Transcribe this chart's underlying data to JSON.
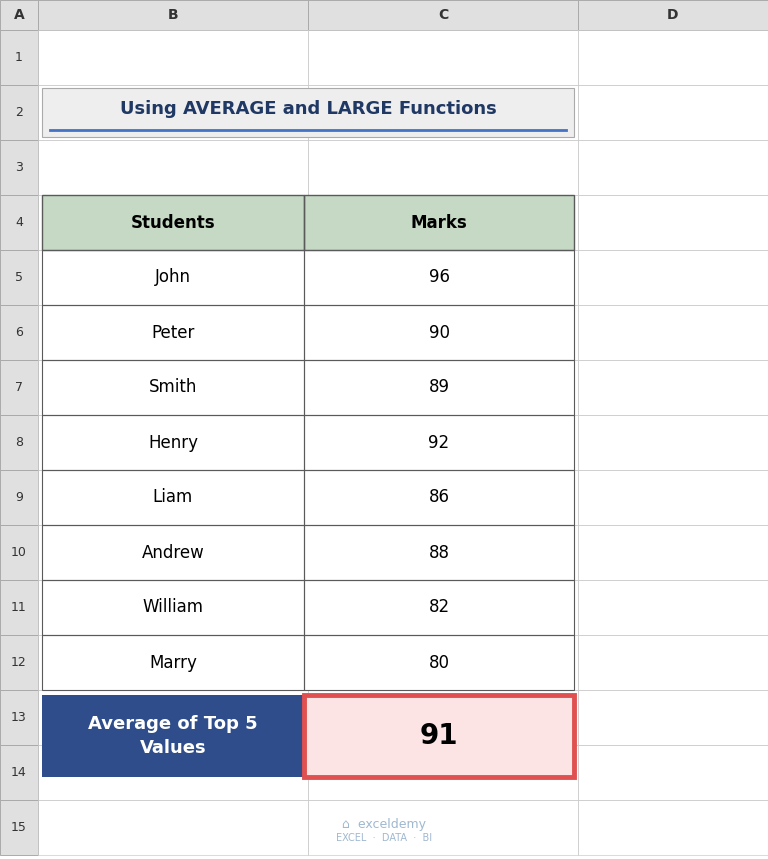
{
  "title": "Using AVERAGE and LARGE Functions",
  "students": [
    "John",
    "Peter",
    "Smith",
    "Henry",
    "Liam",
    "Andrew",
    "William",
    "Marry"
  ],
  "marks": [
    96,
    90,
    89,
    92,
    86,
    88,
    82,
    80
  ],
  "col_header": [
    "Students",
    "Marks"
  ],
  "col_header_bg": "#c5d9c5",
  "grid_color": "#5a5a5a",
  "title_color": "#1f3864",
  "title_underline_color": "#4472c4",
  "avg_label": "Average of Top 5\nValues",
  "avg_label_bg": "#2e4d8a",
  "avg_label_text_color": "#ffffff",
  "avg_value": "91",
  "avg_value_bg": "#fce4e4",
  "avg_value_border": "#e05050",
  "spreadsheet_bg": "#ffffff",
  "watermark_color": "#a0b8d0"
}
